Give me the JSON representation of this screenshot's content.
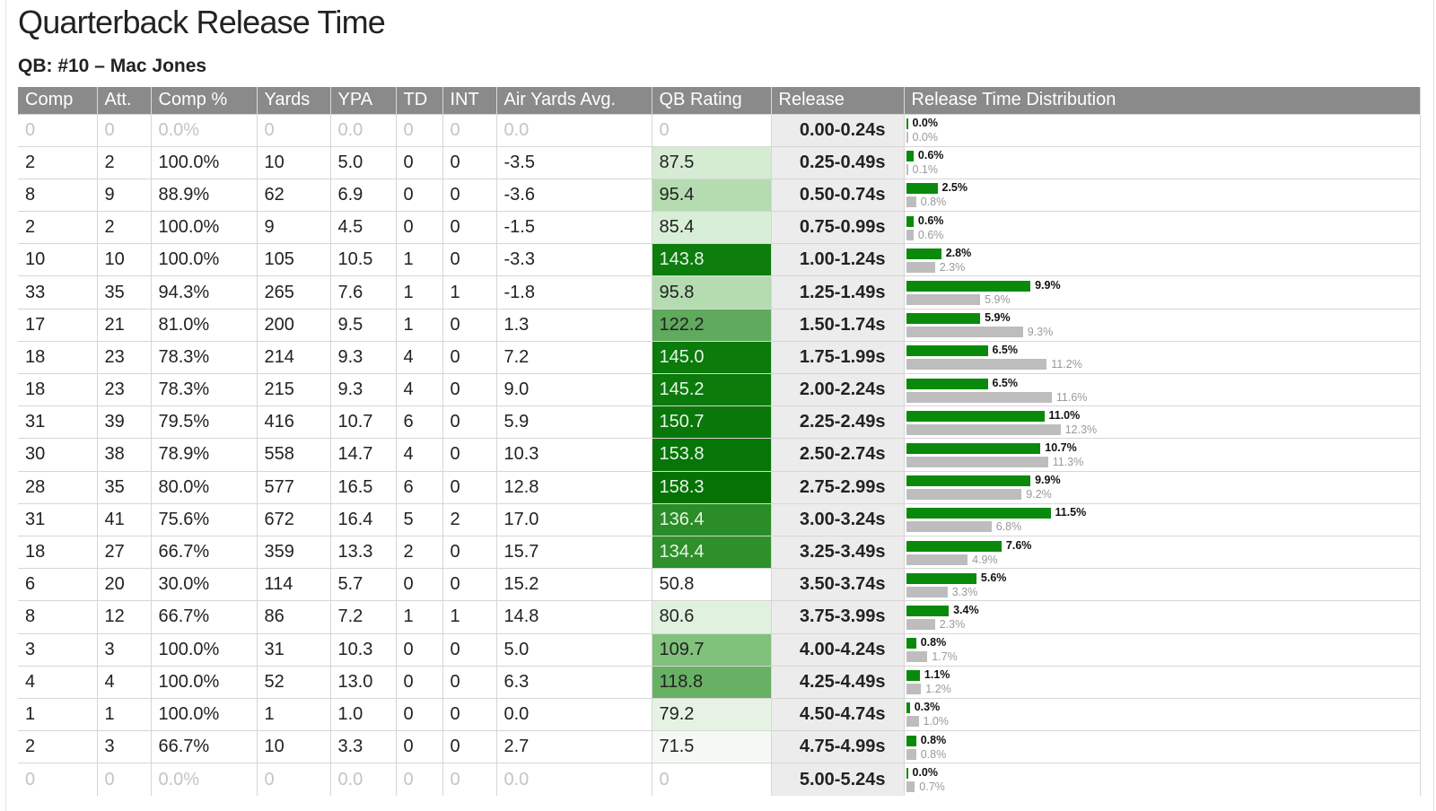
{
  "title": "Quarterback Release Time",
  "subtitle": "QB: #10 – Mac Jones",
  "columns": [
    "Comp",
    "Att.",
    "Comp %",
    "Yards",
    "YPA",
    "TD",
    "INT",
    "Air Yards Avg.",
    "QB Rating",
    "Release",
    "Release Time Distribution"
  ],
  "colors": {
    "header_bg": "#8a8a8a",
    "player_bar": "#0a8a0a",
    "league_bar": "#bdbdbd",
    "release_bg": "#ececec"
  },
  "rows": [
    {
      "comp": "0",
      "att": "0",
      "pct": "0.0%",
      "yds": "0",
      "ypa": "0.0",
      "td": "0",
      "int": "0",
      "air": "0.0",
      "rating": "0",
      "shade": "#ffffff",
      "light": true,
      "dim": true,
      "release": "0.00-0.24s",
      "player": "0.0%",
      "player_v": 0.0,
      "league": "0.0%",
      "league_v": 0.0
    },
    {
      "comp": "2",
      "att": "2",
      "pct": "100.0%",
      "yds": "10",
      "ypa": "5.0",
      "td": "0",
      "int": "0",
      "air": "-3.5",
      "rating": "87.5",
      "shade": "#d5ecd3",
      "light": false,
      "dim": false,
      "release": "0.25-0.49s",
      "player": "0.6%",
      "player_v": 0.6,
      "league": "0.1%",
      "league_v": 0.1
    },
    {
      "comp": "8",
      "att": "9",
      "pct": "88.9%",
      "yds": "62",
      "ypa": "6.9",
      "td": "0",
      "int": "0",
      "air": "-3.6",
      "rating": "95.4",
      "shade": "#b5dcb1",
      "light": false,
      "dim": false,
      "release": "0.50-0.74s",
      "player": "2.5%",
      "player_v": 2.5,
      "league": "0.8%",
      "league_v": 0.8
    },
    {
      "comp": "2",
      "att": "2",
      "pct": "100.0%",
      "yds": "9",
      "ypa": "4.5",
      "td": "0",
      "int": "0",
      "air": "-1.5",
      "rating": "85.4",
      "shade": "#d9eed7",
      "light": false,
      "dim": false,
      "release": "0.75-0.99s",
      "player": "0.6%",
      "player_v": 0.6,
      "league": "0.6%",
      "league_v": 0.6
    },
    {
      "comp": "10",
      "att": "10",
      "pct": "100.0%",
      "yds": "105",
      "ypa": "10.5",
      "td": "1",
      "int": "0",
      "air": "-3.3",
      "rating": "143.8",
      "shade": "#0d7d0d",
      "light": true,
      "dim": false,
      "release": "1.00-1.24s",
      "player": "2.8%",
      "player_v": 2.8,
      "league": "2.3%",
      "league_v": 2.3
    },
    {
      "comp": "33",
      "att": "35",
      "pct": "94.3%",
      "yds": "265",
      "ypa": "7.6",
      "td": "1",
      "int": "1",
      "air": "-1.8",
      "rating": "95.8",
      "shade": "#b5dcb1",
      "light": false,
      "dim": false,
      "release": "1.25-1.49s",
      "player": "9.9%",
      "player_v": 9.9,
      "league": "5.9%",
      "league_v": 5.9
    },
    {
      "comp": "17",
      "att": "21",
      "pct": "81.0%",
      "yds": "200",
      "ypa": "9.5",
      "td": "1",
      "int": "0",
      "air": "1.3",
      "rating": "122.2",
      "shade": "#5faa5c",
      "light": false,
      "dim": false,
      "release": "1.50-1.74s",
      "player": "5.9%",
      "player_v": 5.9,
      "league": "9.3%",
      "league_v": 9.3
    },
    {
      "comp": "18",
      "att": "23",
      "pct": "78.3%",
      "yds": "214",
      "ypa": "9.3",
      "td": "4",
      "int": "0",
      "air": "7.2",
      "rating": "145.0",
      "shade": "#0b7b0b",
      "light": true,
      "dim": false,
      "release": "1.75-1.99s",
      "player": "6.5%",
      "player_v": 6.5,
      "league": "11.2%",
      "league_v": 11.2
    },
    {
      "comp": "18",
      "att": "23",
      "pct": "78.3%",
      "yds": "215",
      "ypa": "9.3",
      "td": "4",
      "int": "0",
      "air": "9.0",
      "rating": "145.2",
      "shade": "#0b7b0b",
      "light": true,
      "dim": false,
      "release": "2.00-2.24s",
      "player": "6.5%",
      "player_v": 6.5,
      "league": "11.6%",
      "league_v": 11.6
    },
    {
      "comp": "31",
      "att": "39",
      "pct": "79.5%",
      "yds": "416",
      "ypa": "10.7",
      "td": "6",
      "int": "0",
      "air": "5.9",
      "rating": "150.7",
      "shade": "#097709",
      "light": true,
      "dim": false,
      "release": "2.25-2.49s",
      "player": "11.0%",
      "player_v": 11.0,
      "league": "12.3%",
      "league_v": 12.3
    },
    {
      "comp": "30",
      "att": "38",
      "pct": "78.9%",
      "yds": "558",
      "ypa": "14.7",
      "td": "4",
      "int": "0",
      "air": "10.3",
      "rating": "153.8",
      "shade": "#087508",
      "light": true,
      "dim": false,
      "release": "2.50-2.74s",
      "player": "10.7%",
      "player_v": 10.7,
      "league": "11.3%",
      "league_v": 11.3
    },
    {
      "comp": "28",
      "att": "35",
      "pct": "80.0%",
      "yds": "577",
      "ypa": "16.5",
      "td": "6",
      "int": "0",
      "air": "12.8",
      "rating": "158.3",
      "shade": "#067206",
      "light": true,
      "dim": false,
      "release": "2.75-2.99s",
      "player": "9.9%",
      "player_v": 9.9,
      "league": "9.2%",
      "league_v": 9.2
    },
    {
      "comp": "31",
      "att": "41",
      "pct": "75.6%",
      "yds": "672",
      "ypa": "16.4",
      "td": "5",
      "int": "2",
      "air": "17.0",
      "rating": "136.4",
      "shade": "#2a8d27",
      "light": true,
      "dim": false,
      "release": "3.00-3.24s",
      "player": "11.5%",
      "player_v": 11.5,
      "league": "6.8%",
      "league_v": 6.8
    },
    {
      "comp": "18",
      "att": "27",
      "pct": "66.7%",
      "yds": "359",
      "ypa": "13.3",
      "td": "2",
      "int": "0",
      "air": "15.7",
      "rating": "134.4",
      "shade": "#2e902b",
      "light": true,
      "dim": false,
      "release": "3.25-3.49s",
      "player": "7.6%",
      "player_v": 7.6,
      "league": "4.9%",
      "league_v": 4.9
    },
    {
      "comp": "6",
      "att": "20",
      "pct": "30.0%",
      "yds": "114",
      "ypa": "5.7",
      "td": "0",
      "int": "0",
      "air": "15.2",
      "rating": "50.8",
      "shade": "#ffffff",
      "light": false,
      "dim": false,
      "release": "3.50-3.74s",
      "player": "5.6%",
      "player_v": 5.6,
      "league": "3.3%",
      "league_v": 3.3
    },
    {
      "comp": "8",
      "att": "12",
      "pct": "66.7%",
      "yds": "86",
      "ypa": "7.2",
      "td": "1",
      "int": "1",
      "air": "14.8",
      "rating": "80.6",
      "shade": "#e1f1df",
      "light": false,
      "dim": false,
      "release": "3.75-3.99s",
      "player": "3.4%",
      "player_v": 3.4,
      "league": "2.3%",
      "league_v": 2.3
    },
    {
      "comp": "3",
      "att": "3",
      "pct": "100.0%",
      "yds": "31",
      "ypa": "10.3",
      "td": "0",
      "int": "0",
      "air": "5.0",
      "rating": "109.7",
      "shade": "#80c17c",
      "light": false,
      "dim": false,
      "release": "4.00-4.24s",
      "player": "0.8%",
      "player_v": 0.8,
      "league": "1.7%",
      "league_v": 1.7
    },
    {
      "comp": "4",
      "att": "4",
      "pct": "100.0%",
      "yds": "52",
      "ypa": "13.0",
      "td": "0",
      "int": "0",
      "air": "6.3",
      "rating": "118.8",
      "shade": "#68b164",
      "light": false,
      "dim": false,
      "release": "4.25-4.49s",
      "player": "1.1%",
      "player_v": 1.1,
      "league": "1.2%",
      "league_v": 1.2
    },
    {
      "comp": "1",
      "att": "1",
      "pct": "100.0%",
      "yds": "1",
      "ypa": "1.0",
      "td": "0",
      "int": "0",
      "air": "0.0",
      "rating": "79.2",
      "shade": "#e6f3e4",
      "light": false,
      "dim": false,
      "release": "4.50-4.74s",
      "player": "0.3%",
      "player_v": 0.3,
      "league": "1.0%",
      "league_v": 1.0
    },
    {
      "comp": "2",
      "att": "3",
      "pct": "66.7%",
      "yds": "10",
      "ypa": "3.3",
      "td": "0",
      "int": "0",
      "air": "2.7",
      "rating": "71.5",
      "shade": "#f4faf3",
      "light": false,
      "dim": false,
      "release": "4.75-4.99s",
      "player": "0.8%",
      "player_v": 0.8,
      "league": "0.8%",
      "league_v": 0.8
    },
    {
      "comp": "0",
      "att": "0",
      "pct": "0.0%",
      "yds": "0",
      "ypa": "0.0",
      "td": "0",
      "int": "0",
      "air": "0.0",
      "rating": "0",
      "shade": "#ffffff",
      "light": true,
      "dim": true,
      "release": "5.00-5.24s",
      "player": "0.0%",
      "player_v": 0.0,
      "league": "0.7%",
      "league_v": 0.7
    }
  ]
}
